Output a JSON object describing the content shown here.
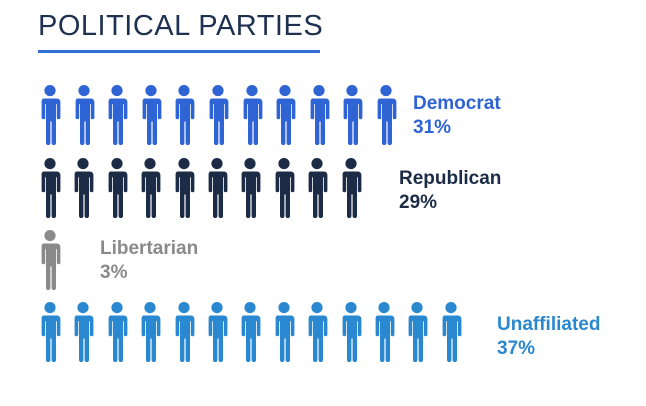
{
  "title": "POLITICAL PARTIES",
  "chart_data": {
    "type": "pictogram",
    "title": "POLITICAL PARTIES",
    "series": [
      {
        "name": "Democrat",
        "percent_label": "31%",
        "value": 31,
        "icon_count": 11,
        "color": "#2f64d4"
      },
      {
        "name": "Republican",
        "percent_label": "29%",
        "value": 29,
        "icon_count": 10,
        "color": "#1c2c46"
      },
      {
        "name": "Libertarian",
        "percent_label": "3%",
        "value": 3,
        "icon_count": 1,
        "color": "#8a8a8a"
      },
      {
        "name": "Unaffiliated",
        "percent_label": "37%",
        "value": 37,
        "icon_count": 13,
        "color": "#2a88d0"
      }
    ]
  }
}
